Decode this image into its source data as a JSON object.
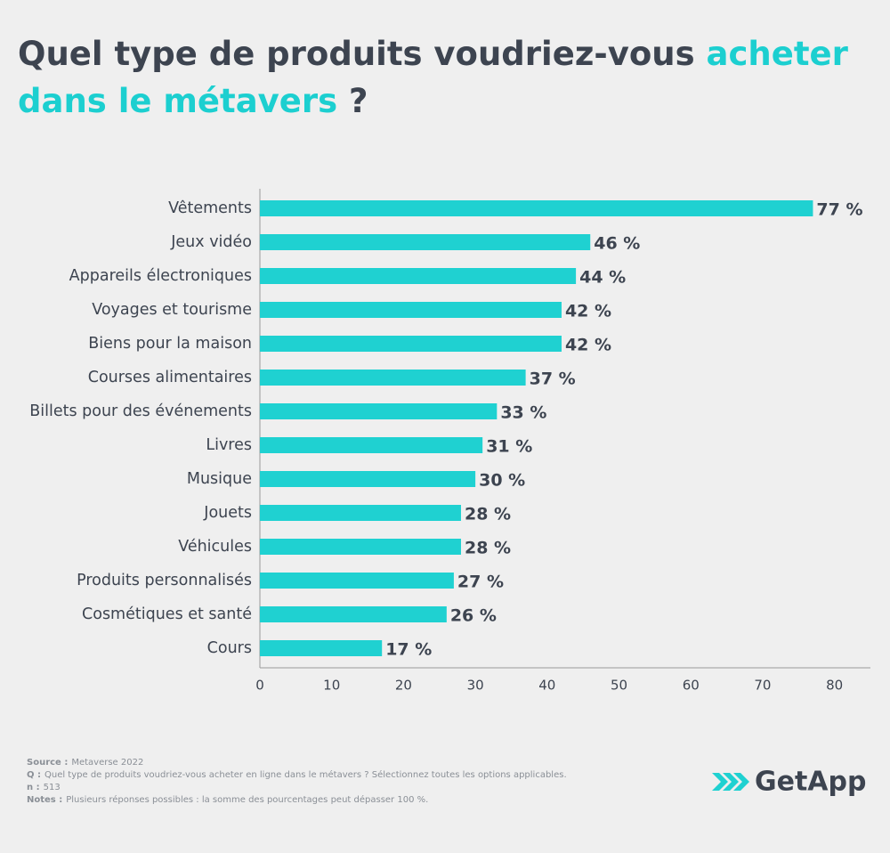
{
  "chart_data": {
    "type": "bar",
    "orientation": "horizontal",
    "title_lines": [
      [
        {
          "text": "Quel type de produits voudriez-vous ",
          "highlight": false
        },
        {
          "text": "acheter",
          "highlight": true
        }
      ],
      [
        {
          "text": "dans le métavers",
          "highlight": true
        },
        {
          "text": " ?",
          "highlight": false
        }
      ]
    ],
    "title_color": "#3d4450",
    "highlight_color": "#1ccfd0",
    "categories": [
      "Vêtements",
      "Jeux vidéo",
      "Appareils électroniques",
      "Voyages et tourisme",
      "Biens pour la maison",
      "Courses alimentaires",
      "Billets pour des événements",
      "Livres",
      "Musique",
      "Jouets",
      "Véhicules",
      "Produits personnalisés",
      "Cosmétiques et santé",
      "Cours"
    ],
    "values": [
      77,
      46,
      44,
      42,
      42,
      37,
      33,
      31,
      30,
      28,
      28,
      27,
      26,
      17
    ],
    "value_labels": [
      "77 %",
      "46 %",
      "44 %",
      "42 %",
      "42 %",
      "37 %",
      "33 %",
      "31 %",
      "30 %",
      "28 %",
      "28 %",
      "27 %",
      "26 %",
      "17 %"
    ],
    "color": "#1fd1d1",
    "xlim": [
      0,
      85
    ],
    "xticks": [
      0,
      10,
      20,
      30,
      40,
      50,
      60,
      70,
      80
    ],
    "grid": false
  },
  "notes": [
    {
      "label": "Source :",
      "text": "Metaverse 2022"
    },
    {
      "label": "Q :",
      "text": "Quel type de produits voudriez-vous acheter en ligne dans le métavers ? Sélectionnez toutes les options applicables."
    },
    {
      "label": "n :",
      "text": "513"
    },
    {
      "label": "Notes :",
      "text": "Plusieurs réponses possibles : la somme des pourcentages peut dépasser 100 %."
    }
  ],
  "logo": {
    "text": "GetApp"
  }
}
